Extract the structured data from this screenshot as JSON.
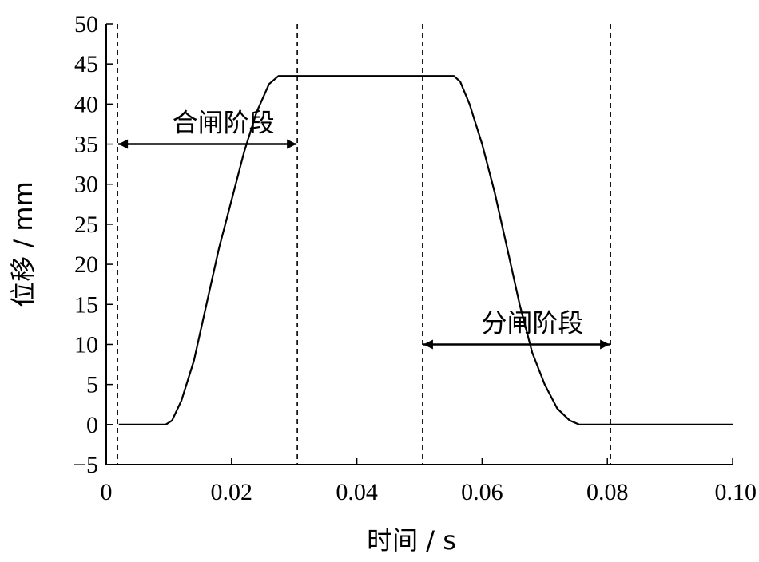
{
  "chart_data": {
    "type": "line",
    "title": "",
    "xlabel": "时间 / s",
    "ylabel": "位移 / mm",
    "xlim": [
      0,
      0.1
    ],
    "ylim": [
      -5,
      50
    ],
    "xticks": [
      0,
      0.02,
      0.04,
      0.06,
      0.08,
      0.1
    ],
    "xtick_labels": [
      "0",
      "0.02",
      "0.04",
      "0.06",
      "0.08",
      "0.10"
    ],
    "yticks": [
      -5,
      0,
      5,
      10,
      15,
      20,
      25,
      30,
      35,
      40,
      45,
      50
    ],
    "ytick_labels": [
      "−5",
      "0",
      "5",
      "10",
      "15",
      "20",
      "25",
      "30",
      "35",
      "40",
      "45",
      "50"
    ],
    "grid": false,
    "series": [
      {
        "x": [
          0.002,
          0.0095,
          0.0105,
          0.012,
          0.014,
          0.016,
          0.018,
          0.02,
          0.022,
          0.024,
          0.026,
          0.0275,
          0.028,
          0.03,
          0.04,
          0.05,
          0.0555,
          0.0565,
          0.058,
          0.06,
          0.062,
          0.064,
          0.066,
          0.068,
          0.07,
          0.072,
          0.074,
          0.0755,
          0.077,
          0.08,
          0.09,
          0.1
        ],
        "y": [
          0,
          0,
          0.5,
          3,
          8,
          15,
          22,
          28,
          34,
          39,
          42.5,
          43.5,
          43.5,
          43.5,
          43.5,
          43.5,
          43.5,
          42.8,
          40,
          35,
          29,
          22,
          15,
          9,
          5,
          2,
          0.5,
          0,
          0,
          0,
          0,
          0
        ]
      }
    ],
    "vlines": [
      0.0018,
      0.0305,
      0.0505,
      0.0805
    ],
    "annotations": [
      {
        "text": "合闸阶段",
        "x1": 0.0018,
        "x2": 0.0305,
        "y": 35
      },
      {
        "text": "分闸阶段",
        "x1": 0.0505,
        "x2": 0.0805,
        "y": 10
      }
    ]
  }
}
